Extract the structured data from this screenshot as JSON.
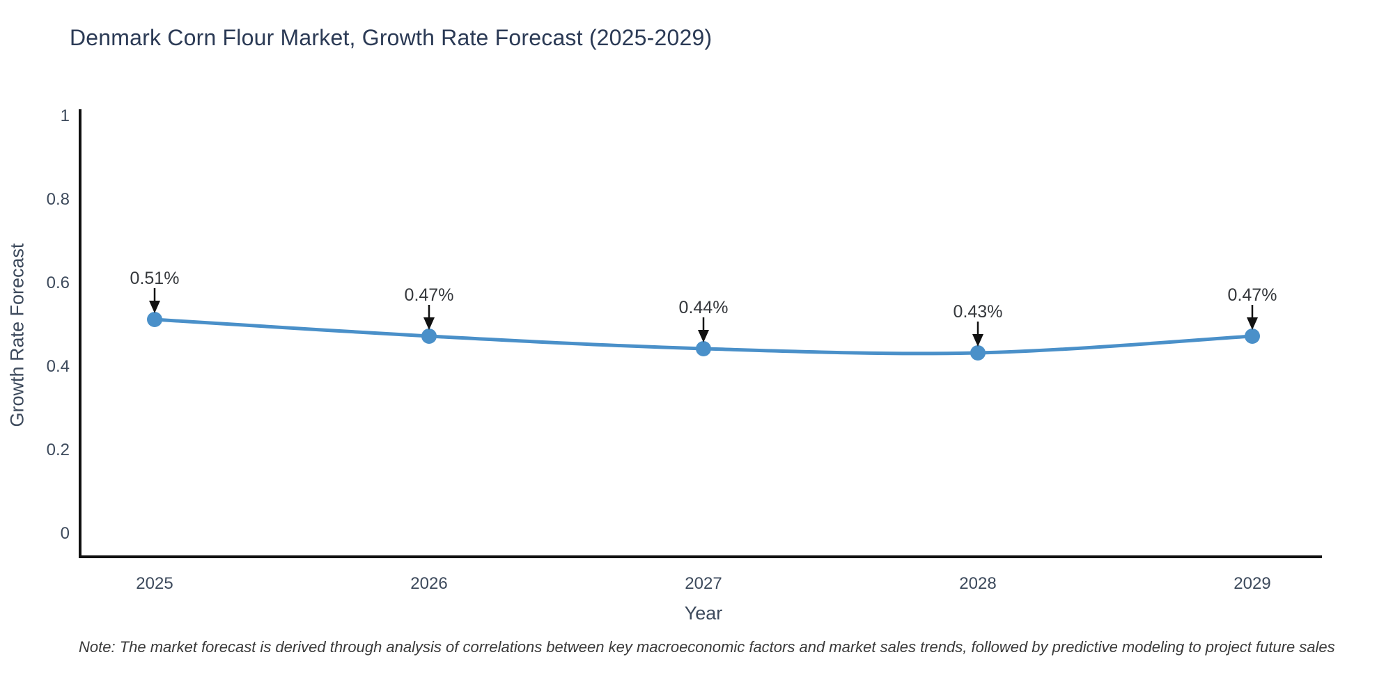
{
  "title": "Denmark Corn Flour Market, Growth Rate Forecast (2025-2029)",
  "chart_data": {
    "type": "line",
    "line_shape": "spline",
    "markers": true,
    "grid": false,
    "legend": false,
    "x": [
      "2025",
      "2026",
      "2027",
      "2028",
      "2029"
    ],
    "series": [
      {
        "name": "Growth Rate Forecast",
        "values": [
          0.51,
          0.47,
          0.44,
          0.43,
          0.47
        ]
      }
    ],
    "point_labels": [
      "0.51%",
      "0.47%",
      "0.44%",
      "0.43%",
      "0.47%"
    ],
    "title": "Denmark Corn Flour Market, Growth Rate Forecast (2025-2029)",
    "xlabel": "Year",
    "ylabel": "Growth Rate Forecast",
    "ylim": [
      0,
      1
    ],
    "yticks": [
      0,
      0.2,
      0.4,
      0.6,
      0.8,
      1
    ],
    "ytick_labels": [
      "0",
      "0.2",
      "0.4",
      "0.6",
      "0.8",
      "1"
    ]
  },
  "note": "Note: The market forecast is derived through analysis of correlations between key macroeconomic factors and market sales trends, followed by predictive modeling to project future sales",
  "colors": {
    "line": "#4a90c9",
    "marker": "#4a90c9",
    "title_text": "#2b3a55",
    "axis_text": "#3d4a5c",
    "annotation_text": "#35383c",
    "arrow": "#111111",
    "spine": "#111111",
    "note_text": "#3a3a3a",
    "background": "#ffffff"
  }
}
